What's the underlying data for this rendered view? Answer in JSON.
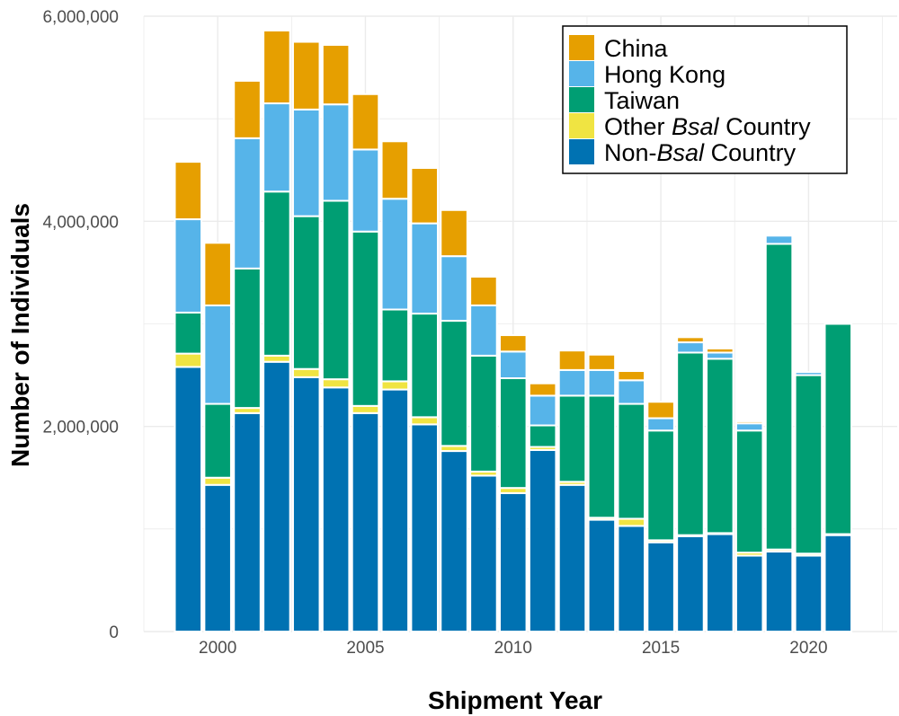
{
  "chart_data": {
    "type": "bar",
    "stacked": true,
    "xlabel": "Shipment Year",
    "ylabel": "Number of Individuals",
    "x": [
      1999,
      2000,
      2001,
      2002,
      2003,
      2004,
      2005,
      2006,
      2007,
      2008,
      2009,
      2010,
      2011,
      2012,
      2013,
      2014,
      2015,
      2016,
      2017,
      2018,
      2019,
      2020,
      2021
    ],
    "xlim": [
      1997.5,
      2023
    ],
    "xticks": [
      2000,
      2005,
      2010,
      2015,
      2020
    ],
    "ylim": [
      0,
      6000000
    ],
    "yticks": [
      0,
      2000000,
      4000000,
      6000000
    ],
    "ytick_labels": [
      "0",
      "2,000,000",
      "4,000,000",
      "6,000,000"
    ],
    "grid": true,
    "legend_position": "top-right",
    "series": [
      {
        "name": "Non-Bsal Country",
        "key": "non_bsal",
        "color": "#0072B2",
        "values": [
          2580000,
          1430000,
          2130000,
          2630000,
          2480000,
          2380000,
          2130000,
          2360000,
          2020000,
          1760000,
          1520000,
          1350000,
          1770000,
          1430000,
          1090000,
          1030000,
          870000,
          930000,
          950000,
          740000,
          780000,
          740000,
          940000
        ]
      },
      {
        "name": "Other Bsal Country",
        "key": "other_bsal",
        "color": "#F0E442",
        "values": [
          130000,
          70000,
          50000,
          60000,
          80000,
          80000,
          70000,
          80000,
          70000,
          50000,
          40000,
          50000,
          30000,
          30000,
          20000,
          70000,
          20000,
          10000,
          10000,
          30000,
          20000,
          20000,
          10000
        ]
      },
      {
        "name": "Taiwan",
        "key": "taiwan",
        "color": "#009E73",
        "values": [
          400000,
          720000,
          1360000,
          1600000,
          1490000,
          1740000,
          1700000,
          700000,
          1010000,
          1220000,
          1130000,
          1070000,
          210000,
          840000,
          1190000,
          1120000,
          1070000,
          1780000,
          1700000,
          1190000,
          2980000,
          1740000,
          2050000
        ]
      },
      {
        "name": "Hong Kong",
        "key": "hong_kong",
        "color": "#56B4E9",
        "values": [
          910000,
          960000,
          1270000,
          860000,
          1040000,
          940000,
          800000,
          1080000,
          880000,
          630000,
          490000,
          260000,
          290000,
          250000,
          250000,
          230000,
          120000,
          100000,
          60000,
          70000,
          80000,
          30000,
          0
        ]
      },
      {
        "name": "China",
        "key": "china",
        "color": "#E69F00",
        "values": [
          560000,
          610000,
          560000,
          710000,
          660000,
          580000,
          540000,
          560000,
          540000,
          450000,
          280000,
          160000,
          120000,
          190000,
          150000,
          90000,
          160000,
          50000,
          40000,
          20000,
          0,
          0,
          0
        ]
      }
    ],
    "legend": [
      {
        "key": "china",
        "label_before": "China",
        "label_italic": "",
        "label_after": "",
        "color": "#E69F00"
      },
      {
        "key": "hong_kong",
        "label_before": "Hong Kong",
        "label_italic": "",
        "label_after": "",
        "color": "#56B4E9"
      },
      {
        "key": "taiwan",
        "label_before": "Taiwan",
        "label_italic": "",
        "label_after": "",
        "color": "#009E73"
      },
      {
        "key": "other_bsal",
        "label_before": "Other ",
        "label_italic": "Bsal",
        "label_after": " Country",
        "color": "#F0E442"
      },
      {
        "key": "non_bsal",
        "label_before": "Non-",
        "label_italic": "Bsal",
        "label_after": " Country",
        "color": "#0072B2"
      }
    ]
  }
}
